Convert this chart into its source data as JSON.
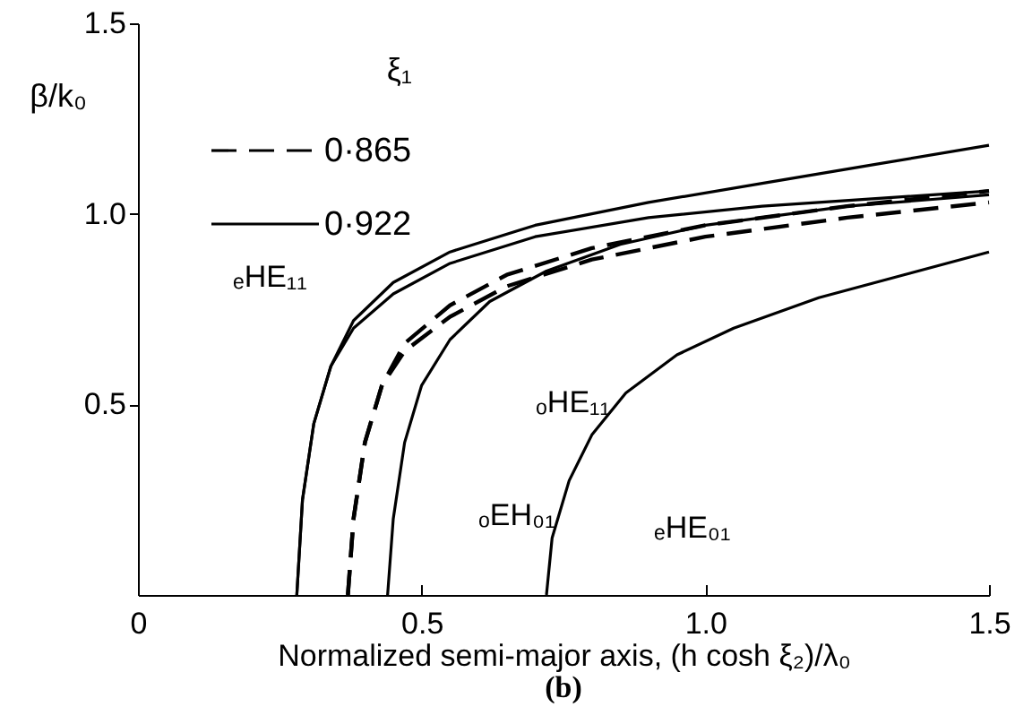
{
  "chart_data": {
    "type": "line",
    "xlabel": "Normalized semi-major axis, (h cosh ξ₂)/λ₀",
    "ylabel": "β/k₀",
    "legend_title": "ξ₁",
    "legend": "top left",
    "grid": false,
    "xlim": [
      0,
      1.5
    ],
    "ylim": [
      0,
      1.5
    ],
    "xticks": [
      0,
      0.5,
      {
        "value": 1,
        "label": "1.0"
      },
      1.5
    ],
    "yticks": [
      0.5,
      {
        "value": 1,
        "label": "1.0"
      },
      1.5
    ],
    "series": [
      {
        "name": "0·865",
        "color": "#000000",
        "line_style": "dashed",
        "x": [
          0.37,
          0.38,
          0.4,
          0.43,
          0.47,
          0.55,
          0.65,
          0.8,
          1.0,
          1.25,
          1.5
        ],
        "values": [
          0,
          0.2,
          0.4,
          0.55,
          0.66,
          0.76,
          0.84,
          0.91,
          0.97,
          1.02,
          1.06
        ]
      },
      {
        "color": "#000000",
        "line_style": "dashed",
        "x": [
          0.37,
          0.38,
          0.4,
          0.43,
          0.47,
          0.55,
          0.65,
          0.8,
          1.0,
          1.25,
          1.5
        ],
        "values": [
          0,
          0.2,
          0.4,
          0.55,
          0.64,
          0.73,
          0.81,
          0.88,
          0.94,
          0.99,
          1.03
        ]
      },
      {
        "name": "0·922",
        "color": "#000000",
        "line_style": "solid",
        "x": [
          0.28,
          0.29,
          0.31,
          0.34,
          0.38,
          0.45,
          0.55,
          0.7,
          0.9,
          1.1,
          1.3,
          1.5
        ],
        "values": [
          0,
          0.25,
          0.45,
          0.6,
          0.72,
          0.82,
          0.9,
          0.97,
          1.03,
          1.08,
          1.13,
          1.18
        ]
      },
      {
        "color": "#000000",
        "line_style": "solid",
        "x": [
          0.28,
          0.29,
          0.31,
          0.34,
          0.38,
          0.45,
          0.55,
          0.7,
          0.9,
          1.1,
          1.3,
          1.5
        ],
        "values": [
          0,
          0.25,
          0.45,
          0.6,
          0.7,
          0.79,
          0.87,
          0.94,
          0.99,
          1.02,
          1.04,
          1.06
        ]
      },
      {
        "color": "#000000",
        "line_style": "solid",
        "x": [
          0.44,
          0.45,
          0.47,
          0.5,
          0.55,
          0.62,
          0.72,
          0.85,
          1.0,
          1.25,
          1.5
        ],
        "values": [
          0,
          0.2,
          0.4,
          0.55,
          0.67,
          0.77,
          0.85,
          0.92,
          0.97,
          1.02,
          1.05
        ]
      },
      {
        "color": "#000000",
        "line_style": "solid",
        "x": [
          0.72,
          0.73,
          0.76,
          0.8,
          0.86,
          0.95,
          1.05,
          1.2,
          1.35,
          1.5
        ],
        "values": [
          0,
          0.15,
          0.3,
          0.42,
          0.53,
          0.63,
          0.7,
          0.78,
          0.84,
          0.9
        ]
      }
    ],
    "annotations": [
      "ₑHE₁₁",
      "ₒHE₁₁",
      "ₒEH₀₁",
      "ₑHE₀₁",
      "(b)"
    ]
  }
}
